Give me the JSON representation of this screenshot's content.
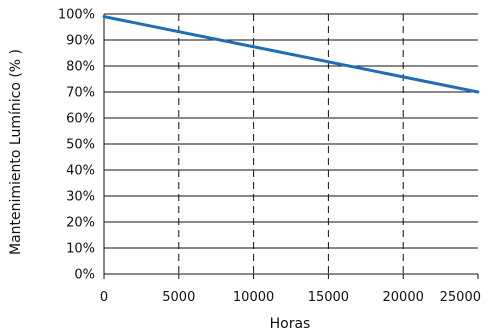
{
  "chart_data": {
    "type": "line",
    "title": "",
    "xlabel": "Horas",
    "ylabel": "Mantenimiento Lumínico (% )",
    "xlim": [
      0,
      25000
    ],
    "ylim": [
      0,
      100
    ],
    "x_ticks": [
      0,
      5000,
      10000,
      15000,
      20000,
      25000
    ],
    "x_tick_labels": [
      "0",
      "5000",
      "10000",
      "15000",
      "20000",
      "25000"
    ],
    "y_ticks": [
      0,
      10,
      20,
      30,
      40,
      50,
      60,
      70,
      80,
      90,
      100
    ],
    "y_tick_labels": [
      "0%",
      "10%",
      "20%",
      "30%",
      "40%",
      "50%",
      "60%",
      "70%",
      "80%",
      "90%",
      "100%"
    ],
    "grid": {
      "horizontal": "solid",
      "vertical": "dashed"
    },
    "series": [
      {
        "x": [
          0,
          25000
        ],
        "y": [
          99,
          70
        ],
        "color": "#1f6fb2"
      }
    ]
  }
}
